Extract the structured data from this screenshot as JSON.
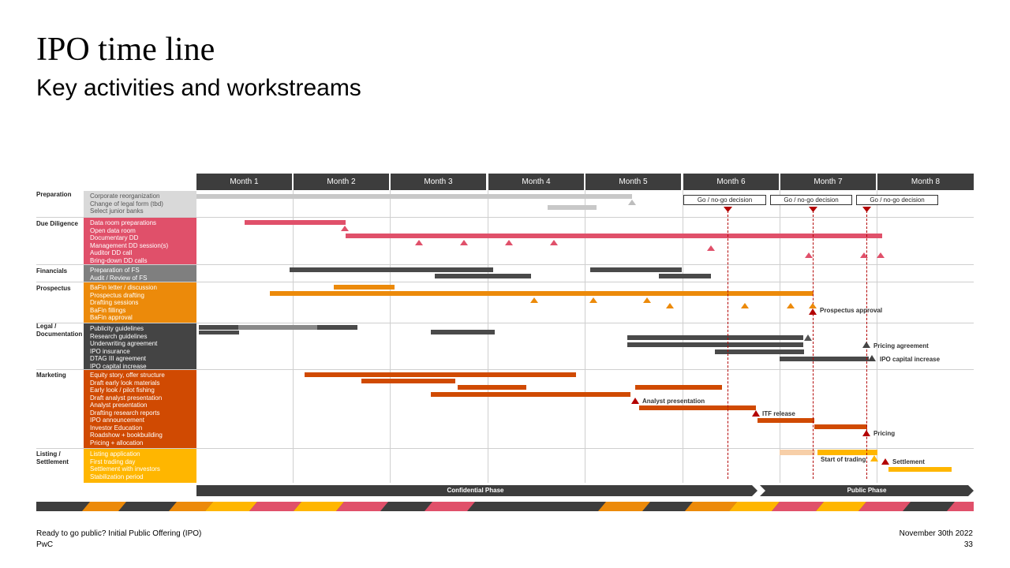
{
  "title": "IPO time line",
  "subtitle": "Key activities and workstreams",
  "months": [
    "Month 1",
    "Month 2",
    "Month 3",
    "Month 4",
    "Month 5",
    "Month 6",
    "Month 7",
    "Month 8"
  ],
  "sections": [
    {
      "id": "prep",
      "label": "Preparation",
      "bg": "#d9d9d9",
      "fg": "#555555",
      "items": [
        "Corporate reorganization",
        "Change of legal form (tbd)",
        "Select junior banks"
      ]
    },
    {
      "id": "dd",
      "label": "Due Diligence",
      "bg": "#e0506a",
      "fg": "#ffffff",
      "items": [
        "Data room preparations",
        "Open data room",
        "Documentary DD",
        "Management DD session(s)",
        "Auditor DD call",
        "Bring-down DD calls"
      ]
    },
    {
      "id": "fin",
      "label": "Financials",
      "bg": "#7f7f7f",
      "fg": "#ffffff",
      "items": [
        "Preparation of FS",
        "Audit / Review of FS"
      ]
    },
    {
      "id": "prosp",
      "label": "Prospectus",
      "bg": "#ec8a0a",
      "fg": "#ffffff",
      "items": [
        "BaFin letter / discussion",
        "Prospectus drafting",
        "Drafting sessions",
        "BaFin fillings",
        "BaFin approval"
      ]
    },
    {
      "id": "legal",
      "label": "Legal / Documentation",
      "bg": "#444444",
      "fg": "#ffffff",
      "items": [
        "Publicity guidelines",
        "Research guidelines",
        "Underwriting agreement",
        "IPO insurance",
        "DTAG III agreement",
        "IPO capital increase"
      ]
    },
    {
      "id": "mkt",
      "label": "Marketing",
      "bg": "#d04a02",
      "fg": "#ffffff",
      "items": [
        "Equity story, offer structure",
        "Draft early look materials",
        "Early look / pilot fishing",
        "Draft analyst presentation",
        "Analyst presentation",
        "Drafting research reports",
        "IPO announcement",
        "Investor Education",
        "Roadshow + bookbuilding",
        "Pricing + allocation"
      ]
    },
    {
      "id": "list",
      "label": "Listing / Settlement",
      "bg": "#ffb600",
      "fg": "#ffffff",
      "items": [
        "Listing application",
        "First trading day",
        "Settlement with investors",
        "Stabilization period"
      ]
    }
  ],
  "go_nogo": [
    "Go / no-go decision",
    "Go / no-go decision",
    "Go / no-go decision"
  ],
  "annotations": {
    "prospectus_approval": "Prospectus approval",
    "pricing_agreement": "Pricing agreement",
    "ipo_capital_increase": "IPO capital increase",
    "analyst_presentation": "Analyst presentation",
    "itf_release": "ITF release",
    "pricing": "Pricing",
    "start_of_trading": "Start of trading",
    "settlement": "Settlement"
  },
  "phases": [
    "Confidential Phase",
    "Public Phase"
  ],
  "footer": {
    "left1": "Ready to go public? Initial Public Offering (IPO)",
    "left2": "PwC",
    "right1": "November 30th 2022",
    "right2": "33"
  },
  "colors": {
    "header": "#3d3d3d",
    "dark_red": "#b30000",
    "pink": "#e0506a",
    "orange": "#ec8a0a",
    "dark_orange": "#d04a02",
    "yellow": "#ffb600",
    "grey": "#7f7f7f",
    "dark_grey": "#444444"
  }
}
